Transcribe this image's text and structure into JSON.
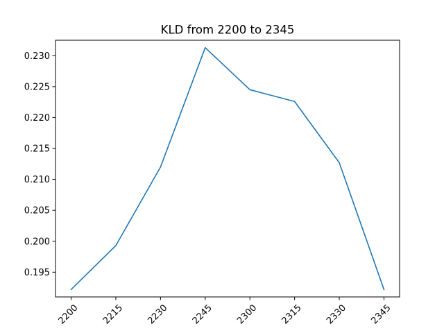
{
  "chart_data": {
    "type": "line",
    "title": "KLD from 2200 to 2345",
    "xlabel": "",
    "ylabel": "",
    "categories": [
      "2200",
      "2215",
      "2230",
      "2245",
      "2300",
      "2315",
      "2330",
      "2345"
    ],
    "series": [
      {
        "values": [
          0.1922,
          0.1993,
          0.212,
          0.2313,
          0.2245,
          0.2226,
          0.2127,
          0.1922
        ],
        "color": "#1f77b4"
      }
    ],
    "yticks": [
      "0.195",
      "0.200",
      "0.205",
      "0.210",
      "0.215",
      "0.220",
      "0.225",
      "0.230"
    ],
    "ylim": [
      0.191,
      0.2325
    ],
    "grid": false,
    "legend": "none",
    "x_tick_rotation_deg": -45
  }
}
